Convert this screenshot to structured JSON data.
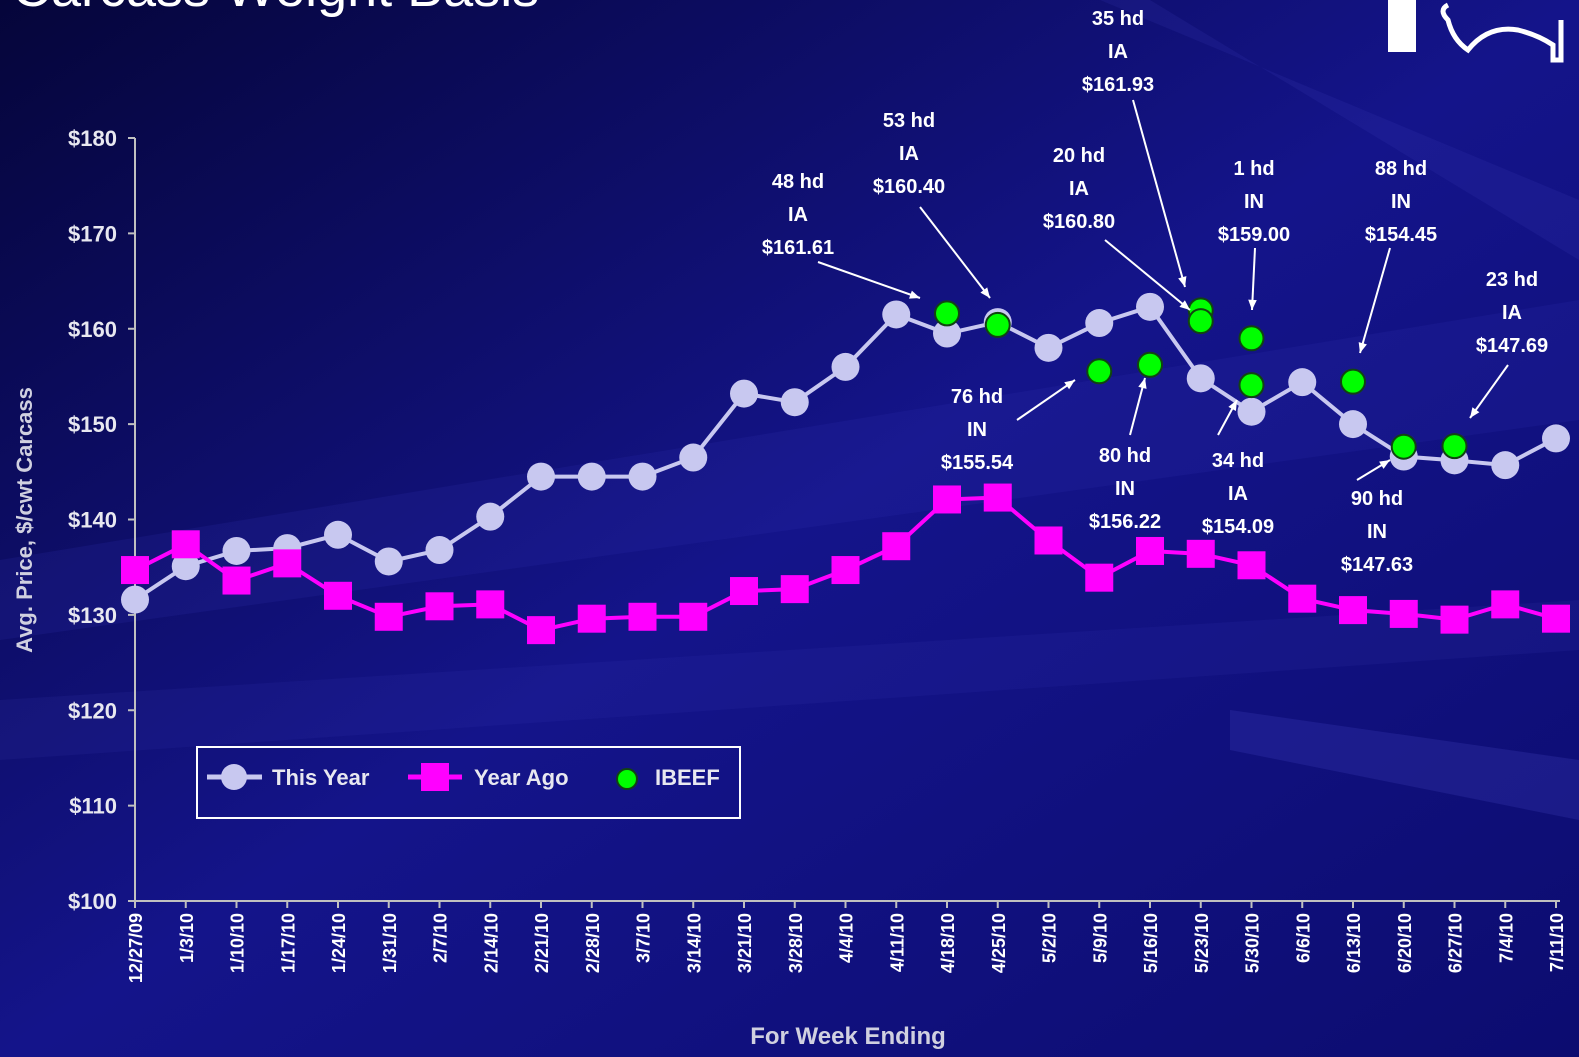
{
  "chart_data": {
    "type": "line",
    "title": "Carcass Weight Basis",
    "y_label": "Avg. Price, $/cwt Carcass",
    "x_label": "For Week Ending",
    "categories": [
      "12/27/09",
      "1/3/10",
      "1/10/10",
      "1/17/10",
      "1/24/10",
      "1/31/10",
      "2/7/10",
      "2/14/10",
      "2/21/10",
      "2/28/10",
      "3/7/10",
      "3/14/10",
      "3/21/10",
      "3/28/10",
      "4/4/10",
      "4/11/10",
      "4/18/10",
      "4/25/10",
      "5/2/10",
      "5/9/10",
      "5/16/10",
      "5/23/10",
      "5/30/10",
      "6/6/10",
      "6/13/10",
      "6/20/10",
      "6/27/10",
      "7/4/10",
      "7/11/10"
    ],
    "series": [
      {
        "name": "This Year",
        "color": "#c8c8f0",
        "marker": "circle",
        "values": [
          131.6,
          135.1,
          136.7,
          137.0,
          138.4,
          135.6,
          136.8,
          140.3,
          144.5,
          144.5,
          144.5,
          146.5,
          153.2,
          152.3,
          156.0,
          161.5,
          159.5,
          160.7,
          158.0,
          160.6,
          162.3,
          154.8,
          151.3,
          154.4,
          150.0,
          146.6,
          146.2,
          145.7,
          148.5
        ]
      },
      {
        "name": "Year Ago",
        "color": "#ff00ff",
        "marker": "square",
        "values": [
          134.7,
          137.4,
          133.6,
          135.4,
          132.0,
          129.8,
          130.9,
          131.1,
          128.4,
          129.6,
          129.8,
          129.8,
          132.5,
          132.7,
          134.7,
          137.2,
          142.1,
          142.3,
          137.8,
          133.9,
          136.7,
          136.4,
          135.2,
          131.7,
          130.5,
          130.1,
          129.5,
          131.1,
          129.6
        ]
      }
    ],
    "ibeef": {
      "name": "IBEEF",
      "color": "#00ff00",
      "x": [
        "4/18/10",
        "4/25/10",
        "5/9/10",
        "5/16/10",
        "5/23/10",
        "5/23/10",
        "5/30/10",
        "5/30/10",
        "6/13/10",
        "6/20/10",
        "6/27/10"
      ],
      "values": [
        161.61,
        160.4,
        155.54,
        156.22,
        161.93,
        160.8,
        159.0,
        154.09,
        154.45,
        147.63,
        147.69
      ],
      "value_labels": [
        "$161.61",
        "$160.40",
        "$155.54",
        "$156.22",
        "$161.93",
        "$160.80",
        "$159.00",
        "$154.09",
        "$154.45",
        "$147.63",
        "$147.69"
      ],
      "heads": [
        "48 hd",
        "53 hd",
        "76 hd",
        "80 hd",
        "35 hd",
        "20 hd",
        "1 hd",
        "34 hd",
        "88 hd",
        "90 hd",
        "23 hd"
      ],
      "states": [
        "IA",
        "IA",
        "IN",
        "IN",
        "IA",
        "IA",
        "IN",
        "IA",
        "IN",
        "IN",
        "IA"
      ]
    },
    "ylim": [
      100,
      180
    ],
    "yticks": [
      {
        "value": 100,
        "label": "$100"
      },
      {
        "value": 110,
        "label": "$110"
      },
      {
        "value": 120,
        "label": "$120"
      },
      {
        "value": 130,
        "label": "$130"
      },
      {
        "value": 140,
        "label": "$140"
      },
      {
        "value": 150,
        "label": "$150"
      },
      {
        "value": 160,
        "label": "$160"
      },
      {
        "value": 170,
        "label": "$170"
      },
      {
        "value": 180,
        "label": "$180"
      }
    ],
    "grid": false,
    "legend": "lower left"
  }
}
